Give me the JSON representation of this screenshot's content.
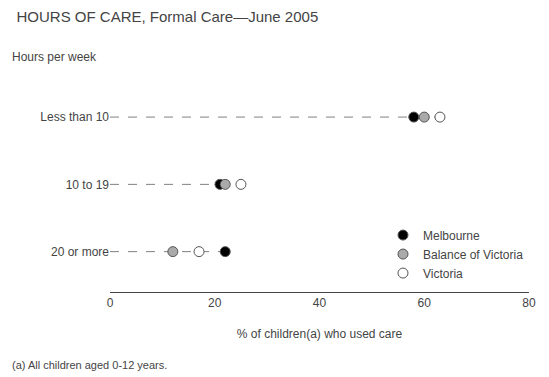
{
  "chart_data": {
    "type": "scatter",
    "orientation": "horizontal",
    "title": "HOURS OF CARE, Formal Care—June 2005",
    "ylabel": "Hours per week",
    "xlabel": "% of children(a) who used care",
    "footnote": "(a) All children aged 0-12 years.",
    "categories": [
      "Less than 10",
      "10 to 19",
      "20 or more"
    ],
    "series": [
      {
        "name": "Melbourne",
        "color": "#000000",
        "marker": "circle",
        "values": [
          58,
          21,
          22
        ]
      },
      {
        "name": "Balance of Victoria",
        "color": "#aaaaaa",
        "marker": "circle",
        "values": [
          60,
          22,
          12
        ]
      },
      {
        "name": "Victoria",
        "color": "#ffffff",
        "marker": "circle",
        "values": [
          63,
          25,
          17
        ]
      }
    ],
    "xlim": [
      0,
      80
    ],
    "xticks": [
      0,
      20,
      40,
      60,
      80
    ],
    "grid": false,
    "legend": "lower right"
  }
}
